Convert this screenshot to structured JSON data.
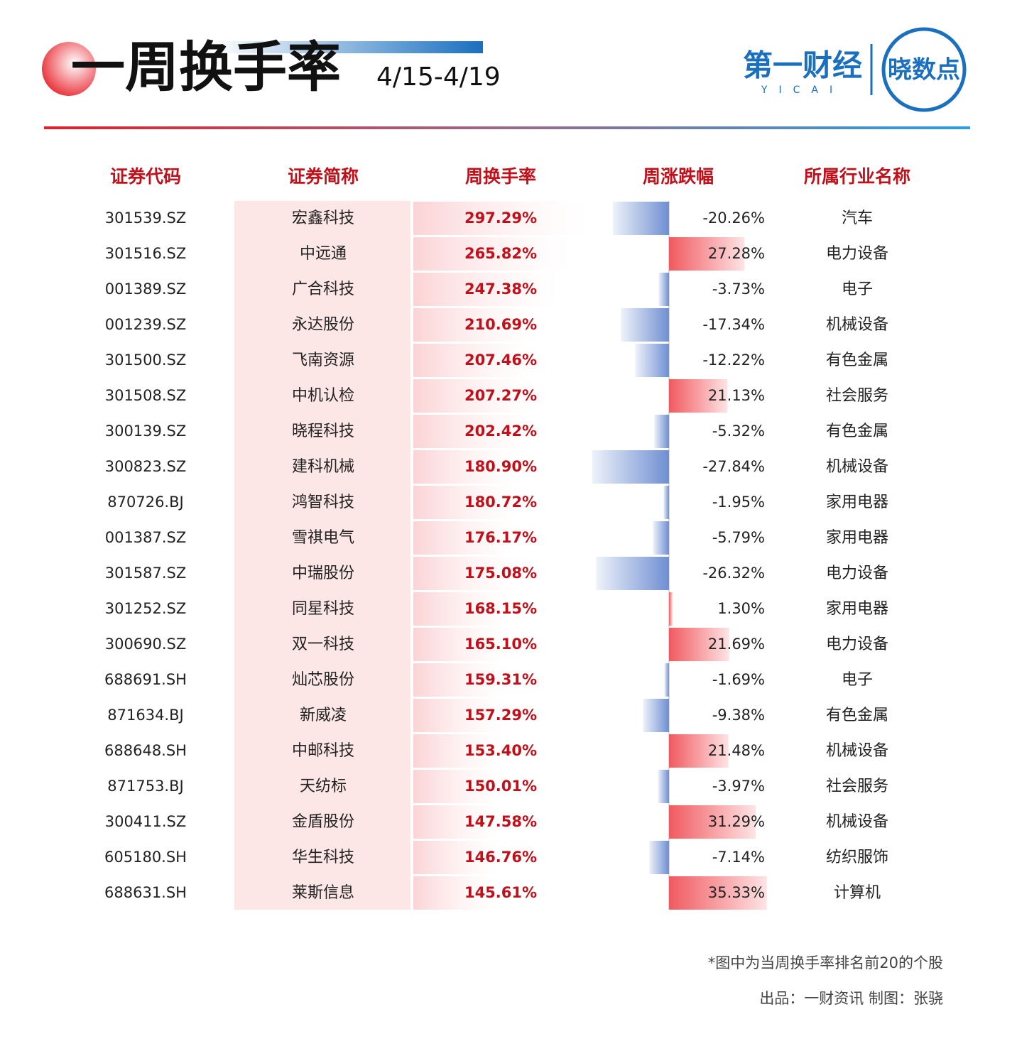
{
  "header": {
    "title": "一周换手率",
    "date": "4/15-4/19",
    "logo": "第一财经",
    "logo_sub": "YICAI",
    "badge": "晓数点"
  },
  "table": {
    "columns": [
      "证券代码",
      "证券简称",
      "周换手率",
      "周涨跌幅",
      "所属行业名称"
    ],
    "rows": [
      {
        "code": "301539.SZ",
        "name": "宏鑫科技",
        "turnover": 297.29,
        "turnover_label": "297.29%",
        "change": -20.26,
        "change_label": "-20.26%",
        "industry": "汽车"
      },
      {
        "code": "301516.SZ",
        "name": "中远通",
        "turnover": 265.82,
        "turnover_label": "265.82%",
        "change": 27.28,
        "change_label": "27.28%",
        "industry": "电力设备"
      },
      {
        "code": "001389.SZ",
        "name": "广合科技",
        "turnover": 247.38,
        "turnover_label": "247.38%",
        "change": -3.73,
        "change_label": "-3.73%",
        "industry": "电子"
      },
      {
        "code": "001239.SZ",
        "name": "永达股份",
        "turnover": 210.69,
        "turnover_label": "210.69%",
        "change": -17.34,
        "change_label": "-17.34%",
        "industry": "机械设备"
      },
      {
        "code": "301500.SZ",
        "name": "飞南资源",
        "turnover": 207.46,
        "turnover_label": "207.46%",
        "change": -12.22,
        "change_label": "-12.22%",
        "industry": "有色金属"
      },
      {
        "code": "301508.SZ",
        "name": "中机认检",
        "turnover": 207.27,
        "turnover_label": "207.27%",
        "change": 21.13,
        "change_label": "21.13%",
        "industry": "社会服务"
      },
      {
        "code": "300139.SZ",
        "name": "晓程科技",
        "turnover": 202.42,
        "turnover_label": "202.42%",
        "change": -5.32,
        "change_label": "-5.32%",
        "industry": "有色金属"
      },
      {
        "code": "300823.SZ",
        "name": "建科机械",
        "turnover": 180.9,
        "turnover_label": "180.90%",
        "change": -27.84,
        "change_label": "-27.84%",
        "industry": "机械设备"
      },
      {
        "code": "870726.BJ",
        "name": "鸿智科技",
        "turnover": 180.72,
        "turnover_label": "180.72%",
        "change": -1.95,
        "change_label": "-1.95%",
        "industry": "家用电器"
      },
      {
        "code": "001387.SZ",
        "name": "雪祺电气",
        "turnover": 176.17,
        "turnover_label": "176.17%",
        "change": -5.79,
        "change_label": "-5.79%",
        "industry": "家用电器"
      },
      {
        "code": "301587.SZ",
        "name": "中瑞股份",
        "turnover": 175.08,
        "turnover_label": "175.08%",
        "change": -26.32,
        "change_label": "-26.32%",
        "industry": "电力设备"
      },
      {
        "code": "301252.SZ",
        "name": "同星科技",
        "turnover": 168.15,
        "turnover_label": "168.15%",
        "change": 1.3,
        "change_label": "1.30%",
        "industry": "家用电器"
      },
      {
        "code": "300690.SZ",
        "name": "双一科技",
        "turnover": 165.1,
        "turnover_label": "165.10%",
        "change": 21.69,
        "change_label": "21.69%",
        "industry": "电力设备"
      },
      {
        "code": "688691.SH",
        "name": "灿芯股份",
        "turnover": 159.31,
        "turnover_label": "159.31%",
        "change": -1.69,
        "change_label": "-1.69%",
        "industry": "电子"
      },
      {
        "code": "871634.BJ",
        "name": "新威凌",
        "turnover": 157.29,
        "turnover_label": "157.29%",
        "change": -9.38,
        "change_label": "-9.38%",
        "industry": "有色金属"
      },
      {
        "code": "688648.SH",
        "name": "中邮科技",
        "turnover": 153.4,
        "turnover_label": "153.40%",
        "change": 21.48,
        "change_label": "21.48%",
        "industry": "机械设备"
      },
      {
        "code": "871753.BJ",
        "name": "天纺标",
        "turnover": 150.01,
        "turnover_label": "150.01%",
        "change": -3.97,
        "change_label": "-3.97%",
        "industry": "社会服务"
      },
      {
        "code": "300411.SZ",
        "name": "金盾股份",
        "turnover": 147.58,
        "turnover_label": "147.58%",
        "change": 31.29,
        "change_label": "31.29%",
        "industry": "机械设备"
      },
      {
        "code": "605180.SH",
        "name": "华生科技",
        "turnover": 146.76,
        "turnover_label": "146.76%",
        "change": -7.14,
        "change_label": "-7.14%",
        "industry": "纺织服饰"
      },
      {
        "code": "688631.SH",
        "name": "莱斯信息",
        "turnover": 145.61,
        "turnover_label": "145.61%",
        "change": 35.33,
        "change_label": "35.33%",
        "industry": "计算机"
      }
    ]
  },
  "footnote": "*图中为当周换手率排名前20的个股",
  "credit": "出品：一财资讯  制图：张骁"
}
